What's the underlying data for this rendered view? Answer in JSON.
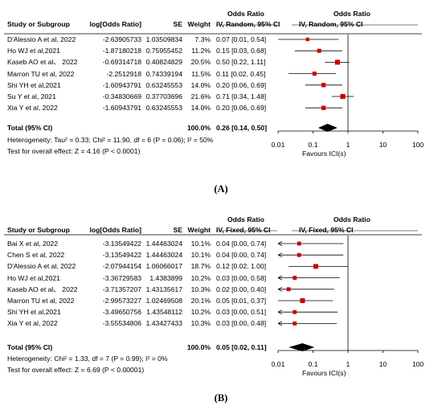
{
  "panels": [
    {
      "caption": "(A)",
      "title_block": {
        "effect_group": "Odds Ratio",
        "plot_group": "Odds Ratio"
      },
      "headers": {
        "study": "Study or Subgroup",
        "log_or": "log[Odds Ratio]",
        "se": "SE",
        "weight": "Weight",
        "ci_method": "IV, Random, 95% CI",
        "plot_method": "IV, Random, 95% CI"
      },
      "studies": [
        {
          "name": "D'Alessio A et al, 2022",
          "log_or": "-2.63905733",
          "se": "1.03509834",
          "weight": "7.3%",
          "ci": "0.07 [0.01, 0.54]"
        },
        {
          "name": "Ho WJ et al,2021",
          "log_or": "-1.87180218",
          "se": "0.75955452",
          "weight": "11.2%",
          "ci": "0.15 [0.03, 0.68]"
        },
        {
          "name": "Kaseb AO et al、 2022",
          "log_or": "-0.69314718",
          "se": "0.40824829",
          "weight": "20.5%",
          "ci": "0.50 [0.22, 1.11]"
        },
        {
          "name": "Marron TU et al, 2022",
          "log_or": "-2.2512918",
          "se": "0.74339194",
          "weight": "11.5%",
          "ci": "0.11 [0.02, 0.45]"
        },
        {
          "name": "Shi YH et al,2021",
          "log_or": "-1.60943791",
          "se": "0.63245553",
          "weight": "14.0%",
          "ci": "0.20 [0.06, 0.69]"
        },
        {
          "name": "Su Y et al, 2021",
          "log_or": "-0.34830669",
          "se": "0.37703696",
          "weight": "21.6%",
          "ci": "0.71 [0.34, 1.48]"
        },
        {
          "name": "Xia Y et al, 2022",
          "log_or": "-1.60943791",
          "se": "0.63245553",
          "weight": "14.0%",
          "ci": "0.20 [0.06, 0.69]"
        }
      ],
      "total": {
        "label": "Total (95% CI)",
        "weight": "100.0%",
        "ci": "0.26 [0.14, 0.50]"
      },
      "heterogeneity": "Heterogeneity: Tau² = 0.33; Chi² = 11.90, df = 6 (P = 0.06); I² = 50%",
      "overall_test": "Test for overall effect: Z = 4.16 (P < 0.0001)",
      "axis": {
        "ticks": [
          "0.01",
          "0.1",
          "1",
          "10",
          "100"
        ],
        "favours_label": "Favours ICI(s)"
      }
    },
    {
      "caption": "(B)",
      "title_block": {
        "effect_group": "Odds Ratio",
        "plot_group": "Odds Ratio"
      },
      "headers": {
        "study": "Study or Subgroup",
        "log_or": "log[Odds Ratio]",
        "se": "SE",
        "weight": "Weight",
        "ci_method": "IV, Fixed, 95% CI",
        "plot_method": "IV, Fixed, 95% CI"
      },
      "studies": [
        {
          "name": "Bai X et al, 2022",
          "log_or": "-3.13549422",
          "se": "1.44463024",
          "weight": "10.1%",
          "ci": "0.04 [0.00, 0.74]"
        },
        {
          "name": "Chen S et al, 2022",
          "log_or": "-3.13549422",
          "se": "1.44463024",
          "weight": "10.1%",
          "ci": "0.04 [0.00, 0.74]"
        },
        {
          "name": "D'Alessio A et al, 2022",
          "log_or": "-2.07944154",
          "se": "1.06066017",
          "weight": "18.7%",
          "ci": "0.12 [0.02, 1.00]"
        },
        {
          "name": "Ho WJ et al,2021",
          "log_or": "-3.36729583",
          "se": "1.4383899",
          "weight": "10.2%",
          "ci": "0.03 [0.00, 0.58]"
        },
        {
          "name": "Kaseb AO et al、 2022",
          "log_or": "-3.71357207",
          "se": "1.43135617",
          "weight": "10.3%",
          "ci": "0.02 [0.00, 0.40]"
        },
        {
          "name": "Marron TU et al, 2022",
          "log_or": "-2.99573227",
          "se": "1.02469508",
          "weight": "20.1%",
          "ci": "0.05 [0.01, 0.37]"
        },
        {
          "name": "Shi YH et al,2021",
          "log_or": "-3.49650756",
          "se": "1.43548112",
          "weight": "10.2%",
          "ci": "0.03 [0.00, 0.51]"
        },
        {
          "name": "Xia Y et al, 2022",
          "log_or": "-3.55534806",
          "se": "1.43427433",
          "weight": "10.3%",
          "ci": "0.03 [0.00, 0.48]"
        }
      ],
      "total": {
        "label": "Total (95% CI)",
        "weight": "100.0%",
        "ci": "0.05 [0.02, 0.11]"
      },
      "heterogeneity": "Heterogeneity: Chi² = 1.33, df = 7 (P = 0.99); I² = 0%",
      "overall_test": "Test for overall effect: Z = 6.69 (P < 0.00001)",
      "axis": {
        "ticks": [
          "0.01",
          "0.1",
          "1",
          "10",
          "100"
        ],
        "favours_label": "Favours ICI(s)"
      }
    }
  ],
  "chart_data": [
    {
      "type": "forest",
      "scale": "log",
      "xlim": [
        0.01,
        100
      ],
      "categories": [
        "D'Alessio A et al, 2022",
        "Ho WJ et al,2021",
        "Kaseb AO et al、 2022",
        "Marron TU et al, 2022",
        "Shi YH et al,2021",
        "Su Y et al, 2021",
        "Xia Y et al, 2022"
      ],
      "estimate": [
        0.07,
        0.15,
        0.5,
        0.11,
        0.2,
        0.71,
        0.2
      ],
      "lower": [
        0.01,
        0.03,
        0.22,
        0.02,
        0.06,
        0.34,
        0.06
      ],
      "upper": [
        0.54,
        0.68,
        1.11,
        0.45,
        0.69,
        1.48,
        0.69
      ],
      "weight": [
        7.3,
        11.2,
        20.5,
        11.5,
        14.0,
        21.6,
        14.0
      ],
      "total": {
        "estimate": 0.26,
        "lower": 0.14,
        "upper": 0.5
      }
    },
    {
      "type": "forest",
      "scale": "log",
      "xlim": [
        0.01,
        100
      ],
      "categories": [
        "Bai X et al, 2022",
        "Chen S et al, 2022",
        "D'Alessio A et al, 2022",
        "Ho WJ et al,2021",
        "Kaseb AO et al、 2022",
        "Marron TU et al, 2022",
        "Shi YH et al,2021",
        "Xia Y et al, 2022"
      ],
      "estimate": [
        0.04,
        0.04,
        0.12,
        0.03,
        0.02,
        0.05,
        0.03,
        0.03
      ],
      "lower": [
        0.0,
        0.0,
        0.02,
        0.0,
        0.0,
        0.01,
        0.0,
        0.0
      ],
      "upper": [
        0.74,
        0.74,
        1.0,
        0.58,
        0.4,
        0.37,
        0.51,
        0.48
      ],
      "weight": [
        10.1,
        10.1,
        18.7,
        10.2,
        10.3,
        20.1,
        10.2,
        10.3
      ],
      "total": {
        "estimate": 0.05,
        "lower": 0.02,
        "upper": 0.11
      }
    }
  ],
  "colors": {
    "marker": "#cc0000",
    "line": "#000000",
    "diamond": "#000000"
  }
}
